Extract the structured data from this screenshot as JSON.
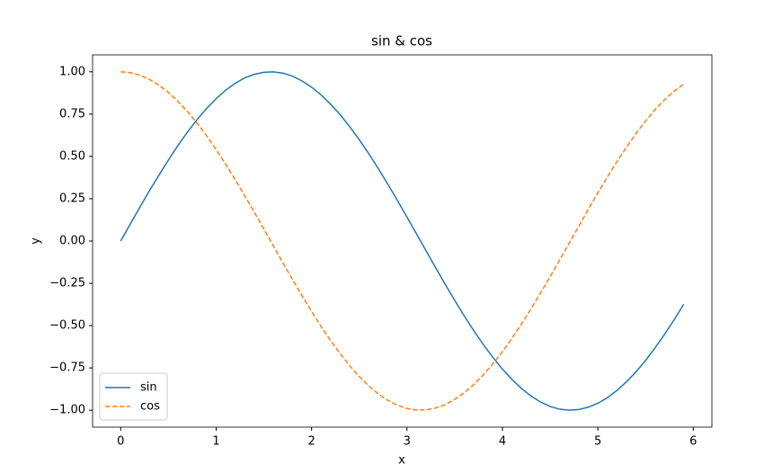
{
  "chart_data": {
    "type": "line",
    "title": "sin & cos",
    "xlabel": "x",
    "ylabel": "y",
    "x": [
      0,
      0.1,
      0.2,
      0.3,
      0.4,
      0.5,
      0.6,
      0.7,
      0.8,
      0.9,
      1.0,
      1.1,
      1.2,
      1.3,
      1.4,
      1.5,
      1.6,
      1.7,
      1.8,
      1.9,
      2.0,
      2.1,
      2.2,
      2.3,
      2.4,
      2.5,
      2.6,
      2.7,
      2.8,
      2.9,
      3.0,
      3.1,
      3.2,
      3.3,
      3.4,
      3.5,
      3.6,
      3.7,
      3.8,
      3.9,
      4.0,
      4.1,
      4.2,
      4.3,
      4.4,
      4.5,
      4.6,
      4.7,
      4.8,
      4.9,
      5.0,
      5.1,
      5.2,
      5.3,
      5.4,
      5.5,
      5.6,
      5.7,
      5.8,
      5.9
    ],
    "series": [
      {
        "name": "sin",
        "color": "#1f77b4",
        "linestyle": "solid",
        "values": [
          0,
          0.1,
          0.199,
          0.296,
          0.389,
          0.479,
          0.565,
          0.644,
          0.717,
          0.783,
          0.841,
          0.891,
          0.932,
          0.964,
          0.985,
          0.997,
          1.0,
          0.992,
          0.974,
          0.946,
          0.909,
          0.863,
          0.808,
          0.746,
          0.675,
          0.598,
          0.516,
          0.427,
          0.335,
          0.239,
          0.141,
          0.042,
          -0.058,
          -0.158,
          -0.256,
          -0.351,
          -0.443,
          -0.53,
          -0.612,
          -0.688,
          -0.757,
          -0.818,
          -0.872,
          -0.916,
          -0.952,
          -0.978,
          -0.994,
          -1.0,
          -0.996,
          -0.982,
          -0.959,
          -0.926,
          -0.883,
          -0.832,
          -0.773,
          -0.706,
          -0.631,
          -0.551,
          -0.465,
          -0.374
        ]
      },
      {
        "name": "cos",
        "color": "#ff7f0e",
        "linestyle": "dashed",
        "values": [
          1,
          0.995,
          0.98,
          0.955,
          0.921,
          0.878,
          0.825,
          0.765,
          0.697,
          0.622,
          0.54,
          0.454,
          0.362,
          0.267,
          0.17,
          0.071,
          -0.029,
          -0.129,
          -0.227,
          -0.323,
          -0.416,
          -0.505,
          -0.589,
          -0.666,
          -0.737,
          -0.801,
          -0.857,
          -0.904,
          -0.942,
          -0.971,
          -0.99,
          -0.999,
          -0.998,
          -0.987,
          -0.967,
          -0.936,
          -0.897,
          -0.848,
          -0.791,
          -0.726,
          -0.654,
          -0.575,
          -0.49,
          -0.401,
          -0.307,
          -0.211,
          -0.112,
          -0.012,
          0.087,
          0.187,
          0.284,
          0.378,
          0.469,
          0.554,
          0.635,
          0.709,
          0.776,
          0.835,
          0.886,
          0.927
        ]
      }
    ],
    "xlim": [
      -0.295,
      6.195
    ],
    "ylim": [
      -1.1,
      1.1
    ],
    "xticks": [
      0,
      1,
      2,
      3,
      4,
      5,
      6
    ],
    "yticks": [
      {
        "value": -1,
        "label": "−1.00"
      },
      {
        "value": -0.75,
        "label": "−0.75"
      },
      {
        "value": -0.5,
        "label": "−0.50"
      },
      {
        "value": -0.25,
        "label": "−0.25"
      },
      {
        "value": 0,
        "label": "0.00"
      },
      {
        "value": 0.25,
        "label": "0.25"
      },
      {
        "value": 0.5,
        "label": "0.50"
      },
      {
        "value": 0.75,
        "label": "0.75"
      },
      {
        "value": 1,
        "label": "1.00"
      }
    ],
    "grid": false,
    "legend": "lower left"
  }
}
